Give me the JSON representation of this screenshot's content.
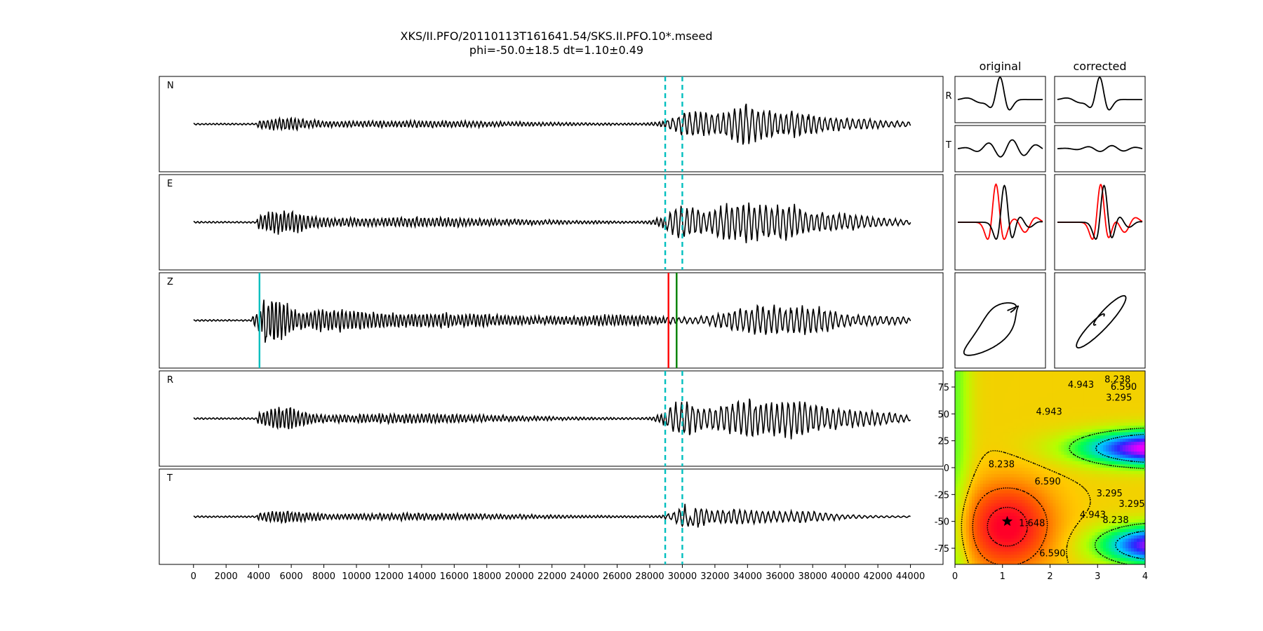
{
  "chart_data": {
    "type": "line",
    "title": "XKS/II.PFO/20110113T161641.54/SKS.II.PFO.10*.mseed",
    "subtitle": "phi=-50.0±18.5 dt=1.10±0.49",
    "waveforms": {
      "channels": [
        "N",
        "E",
        "Z",
        "R",
        "T"
      ],
      "xlim": [
        -2100,
        46000
      ],
      "x_ticks": [
        0,
        2000,
        4000,
        6000,
        8000,
        10000,
        12000,
        14000,
        16000,
        18000,
        20000,
        22000,
        24000,
        26000,
        28000,
        30000,
        32000,
        34000,
        36000,
        38000,
        40000,
        42000,
        44000
      ],
      "trace_range": [
        0,
        44000
      ],
      "window_dashed_x": [
        28950,
        30000
      ],
      "z_markers": [
        {
          "x": 4050,
          "color": "#00bfbf"
        },
        {
          "x": 29150,
          "color": "#ff0000"
        },
        {
          "x": 29650,
          "color": "#008000"
        }
      ]
    },
    "particle_panels": {
      "column_titles": [
        "original",
        "corrected"
      ],
      "row_labels": [
        "R",
        "T"
      ]
    },
    "error_surface": {
      "type": "contour",
      "xlim": [
        0,
        4
      ],
      "ylim": [
        -90,
        90
      ],
      "x_ticks": [
        0,
        1,
        2,
        3,
        4
      ],
      "y_ticks": [
        -75,
        -50,
        -25,
        0,
        25,
        50,
        75
      ],
      "contour_levels": [
        1.648,
        3.295,
        4.943,
        6.59,
        8.238
      ],
      "contour_labels": [
        {
          "text": "8.238",
          "dt": 3.42,
          "phi": 82
        },
        {
          "text": "4.943",
          "dt": 2.65,
          "phi": 77
        },
        {
          "text": "6.590",
          "dt": 3.55,
          "phi": 75
        },
        {
          "text": "3.295",
          "dt": 3.45,
          "phi": 65
        },
        {
          "text": "4.943",
          "dt": 1.98,
          "phi": 52
        },
        {
          "text": "8.238",
          "dt": 0.98,
          "phi": 3
        },
        {
          "text": "6.590",
          "dt": 1.95,
          "phi": -13
        },
        {
          "text": "3.295",
          "dt": 3.25,
          "phi": -24
        },
        {
          "text": "3.295",
          "dt": 3.72,
          "phi": -34
        },
        {
          "text": "4.943",
          "dt": 2.9,
          "phi": -44
        },
        {
          "text": "8.238",
          "dt": 3.38,
          "phi": -49
        },
        {
          "text": "1.648",
          "dt": 1.62,
          "phi": -52
        },
        {
          "text": "6.590",
          "dt": 2.05,
          "phi": -80
        }
      ],
      "best_fit": {
        "dt": 1.1,
        "phi": -50.0
      }
    }
  }
}
